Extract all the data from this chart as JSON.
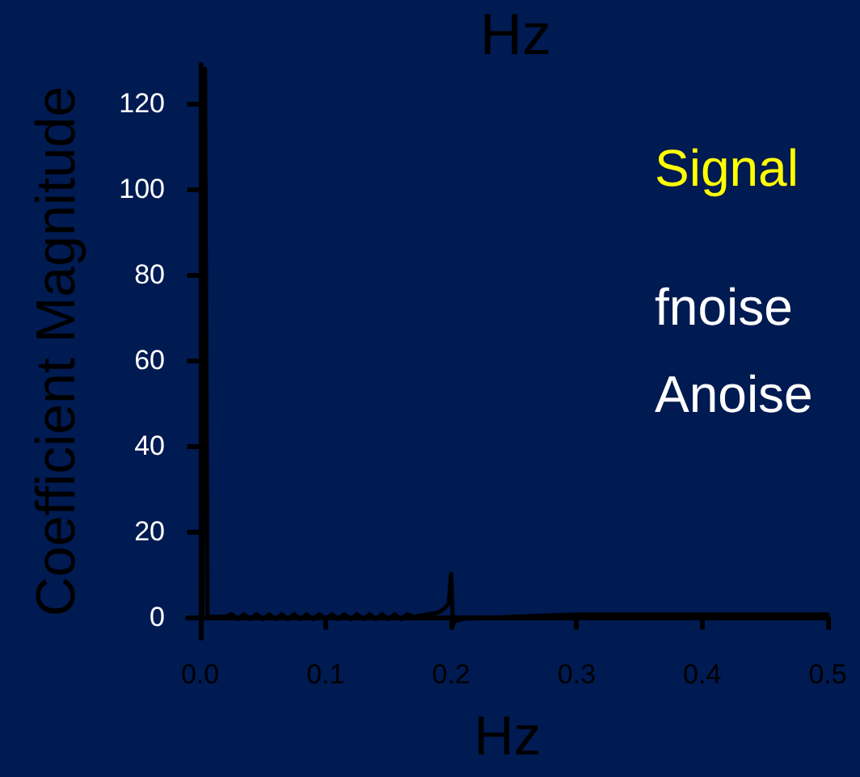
{
  "chart_data": {
    "type": "line",
    "title": "Hz",
    "xlabel": "Hz",
    "ylabel": "Coefficient Magnitude",
    "annotations": [
      "Signal",
      "fnoise",
      "Anoise"
    ],
    "x": [
      0,
      0.002,
      0.004,
      0.006,
      0.01,
      0.02,
      0.025,
      0.03,
      0.035,
      0.04,
      0.045,
      0.05,
      0.055,
      0.06,
      0.065,
      0.07,
      0.075,
      0.08,
      0.085,
      0.09,
      0.095,
      0.1,
      0.105,
      0.11,
      0.115,
      0.12,
      0.125,
      0.13,
      0.135,
      0.14,
      0.145,
      0.15,
      0.155,
      0.16,
      0.165,
      0.17,
      0.18,
      0.19,
      0.195,
      0.198,
      0.2,
      0.2015,
      0.203,
      0.21,
      0.25,
      0.3,
      0.4,
      0.5
    ],
    "series": [
      {
        "color": "#000000",
        "values": [
          0,
          0,
          128,
          0,
          0,
          0,
          0.6,
          -0.6,
          0.6,
          -0.6,
          0.6,
          -0.6,
          0.6,
          -0.6,
          0.6,
          -0.6,
          0.6,
          -0.6,
          0.6,
          -0.6,
          0.6,
          -0.6,
          0.6,
          -0.6,
          0.6,
          -0.6,
          0.6,
          -0.6,
          0.6,
          -0.6,
          0.6,
          -0.6,
          0.6,
          -0.6,
          0.6,
          0,
          0.5,
          1,
          2,
          3,
          10,
          -2,
          -1,
          -0.5,
          0,
          0.5,
          0.5,
          0.5
        ]
      }
    ],
    "xlim": [
      -0.01,
      0.5
    ],
    "xticks": [
      {
        "value": 0,
        "label": "0.0"
      },
      0.1,
      0.2,
      0.3,
      0.4,
      0.5
    ],
    "ylim": [
      -5,
      129
    ],
    "yticks": [
      0,
      20,
      40,
      60,
      80,
      100,
      120
    ]
  }
}
